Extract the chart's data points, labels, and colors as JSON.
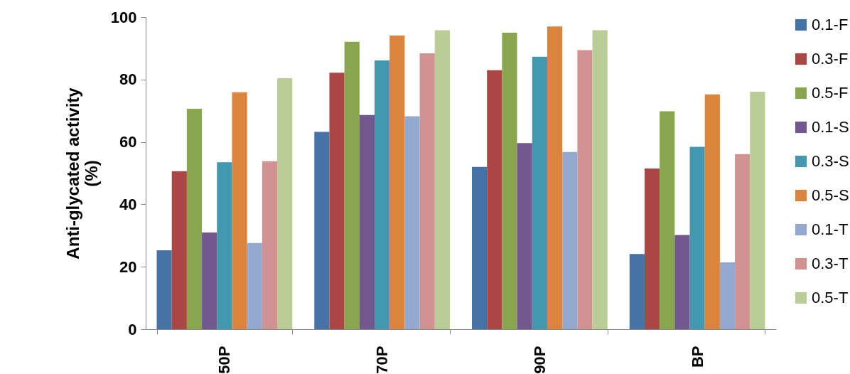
{
  "chart_data": {
    "type": "bar",
    "ylabel": "Anti-glycated activity\n(%)",
    "categories": [
      "50P",
      "70P",
      "90P",
      "BP"
    ],
    "series": [
      {
        "name": "0.1-F",
        "color": "#4572a7",
        "values": [
          25.3,
          63.2,
          52,
          24.1
        ]
      },
      {
        "name": "0.3-F",
        "color": "#aa4643",
        "values": [
          50.6,
          82.2,
          83,
          51.5
        ]
      },
      {
        "name": "0.5-F",
        "color": "#89a54e",
        "values": [
          70.6,
          92.1,
          95,
          69.8
        ]
      },
      {
        "name": "0.1-S",
        "color": "#71588f",
        "values": [
          31,
          68.6,
          59.6,
          30.2
        ]
      },
      {
        "name": "0.3-S",
        "color": "#4198af",
        "values": [
          53.5,
          86.1,
          87.3,
          58.4
        ]
      },
      {
        "name": "0.5-S",
        "color": "#db843d",
        "values": [
          75.9,
          94.1,
          97,
          75.2
        ]
      },
      {
        "name": "0.1-T",
        "color": "#93a9cf",
        "values": [
          27.6,
          68.2,
          56.8,
          21.4
        ]
      },
      {
        "name": "0.3-T",
        "color": "#d19392",
        "values": [
          53.8,
          88.4,
          89.4,
          56.1
        ]
      },
      {
        "name": "0.5-T",
        "color": "#b9cd96",
        "values": [
          80.4,
          95.8,
          95.8,
          76.1
        ]
      }
    ],
    "ylim": [
      0,
      100
    ],
    "yticks": [
      0,
      20,
      40,
      60,
      80,
      100
    ],
    "grid": false,
    "legend": "right"
  }
}
